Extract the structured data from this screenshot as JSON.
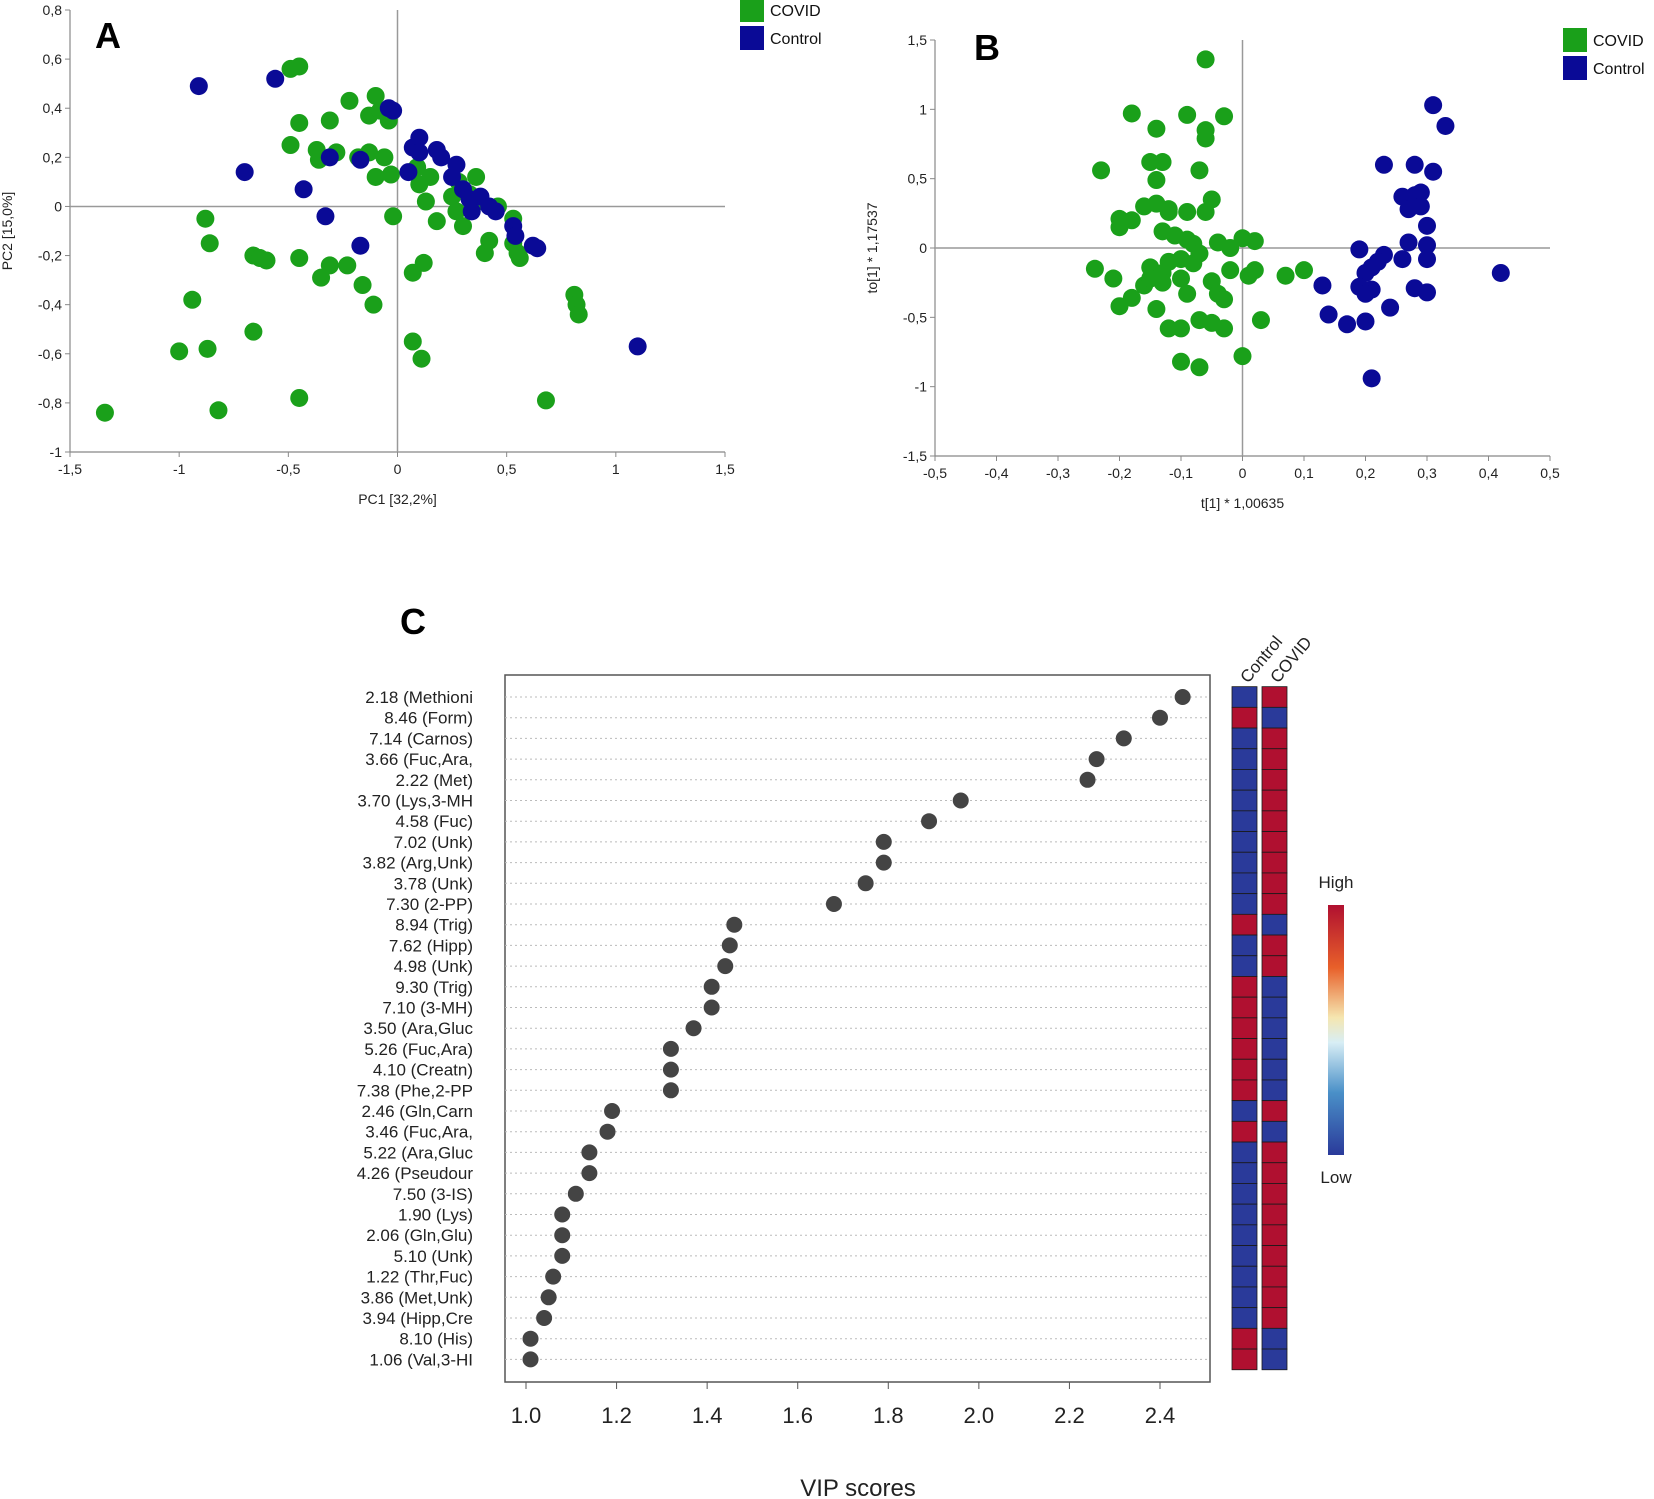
{
  "colors": {
    "covid": "#1aa01a",
    "control": "#0a0a96",
    "dot": "#444444",
    "heat_high": "#b01030",
    "heat_low": "#2a3a9a"
  },
  "chart_data": [
    {
      "type": "scatter",
      "panel_label": "A",
      "xlabel": "PC1 [32,2%]",
      "ylabel": "PC2 [15,0%]",
      "xlim": [
        -1.5,
        1.5
      ],
      "ylim": [
        -1,
        0.8
      ],
      "xticks": [
        "-1,5",
        "-1",
        "-0,5",
        "0",
        "0,5",
        "1",
        "1,5"
      ],
      "yticks": [
        "0,8",
        "0,6",
        "0,4",
        "0,2",
        "0",
        "-0,2",
        "-0,4",
        "-0,6",
        "-0,8",
        "-1"
      ],
      "legend": [
        {
          "name": "COVID",
          "color": "#1aa01a"
        },
        {
          "name": "Control",
          "color": "#0a0a96"
        }
      ],
      "series": [
        {
          "name": "COVID",
          "points": [
            [
              -1.34,
              -0.84
            ],
            [
              -1.0,
              -0.59
            ],
            [
              -0.87,
              -0.58
            ],
            [
              -0.94,
              -0.38
            ],
            [
              -0.88,
              -0.05
            ],
            [
              -0.86,
              -0.15
            ],
            [
              -0.82,
              -0.83
            ],
            [
              -0.66,
              -0.2
            ],
            [
              -0.63,
              -0.21
            ],
            [
              -0.6,
              -0.22
            ],
            [
              -0.66,
              -0.51
            ],
            [
              -0.49,
              0.56
            ],
            [
              -0.45,
              0.57
            ],
            [
              -0.45,
              0.34
            ],
            [
              -0.49,
              0.25
            ],
            [
              -0.45,
              -0.21
            ],
            [
              -0.45,
              -0.78
            ],
            [
              -0.37,
              0.23
            ],
            [
              -0.36,
              0.19
            ],
            [
              -0.35,
              -0.29
            ],
            [
              -0.31,
              0.35
            ],
            [
              -0.31,
              -0.24
            ],
            [
              -0.28,
              0.22
            ],
            [
              -0.23,
              -0.24
            ],
            [
              -0.22,
              0.43
            ],
            [
              -0.18,
              0.2
            ],
            [
              -0.16,
              -0.32
            ],
            [
              -0.13,
              0.37
            ],
            [
              -0.13,
              0.22
            ],
            [
              -0.11,
              -0.4
            ],
            [
              -0.1,
              0.45
            ],
            [
              -0.1,
              0.12
            ],
            [
              -0.08,
              0.39
            ],
            [
              -0.06,
              0.2
            ],
            [
              -0.04,
              0.35
            ],
            [
              -0.03,
              0.13
            ],
            [
              -0.02,
              -0.04
            ],
            [
              0.07,
              -0.27
            ],
            [
              0.07,
              -0.55
            ],
            [
              0.09,
              0.16
            ],
            [
              0.1,
              0.09
            ],
            [
              0.11,
              -0.62
            ],
            [
              0.12,
              -0.23
            ],
            [
              0.13,
              0.02
            ],
            [
              0.15,
              0.12
            ],
            [
              0.18,
              -0.06
            ],
            [
              0.25,
              0.04
            ],
            [
              0.27,
              -0.02
            ],
            [
              0.28,
              0.1
            ],
            [
              0.3,
              -0.08
            ],
            [
              0.33,
              0.05
            ],
            [
              0.36,
              0.12
            ],
            [
              0.37,
              0.02
            ],
            [
              0.4,
              -0.19
            ],
            [
              0.42,
              -0.14
            ],
            [
              0.46,
              0.0
            ],
            [
              0.53,
              -0.05
            ],
            [
              0.53,
              -0.15
            ],
            [
              0.55,
              -0.19
            ],
            [
              0.56,
              -0.21
            ],
            [
              0.68,
              -0.79
            ],
            [
              0.81,
              -0.36
            ],
            [
              0.82,
              -0.4
            ],
            [
              0.83,
              -0.44
            ]
          ]
        },
        {
          "name": "Control",
          "points": [
            [
              -0.91,
              0.49
            ],
            [
              -0.7,
              0.14
            ],
            [
              -0.56,
              0.52
            ],
            [
              -0.43,
              0.07
            ],
            [
              -0.33,
              -0.04
            ],
            [
              -0.31,
              0.2
            ],
            [
              -0.17,
              -0.16
            ],
            [
              -0.17,
              0.19
            ],
            [
              -0.04,
              0.4
            ],
            [
              -0.02,
              0.39
            ],
            [
              0.05,
              0.14
            ],
            [
              0.07,
              0.24
            ],
            [
              0.1,
              0.28
            ],
            [
              0.1,
              0.22
            ],
            [
              0.18,
              0.23
            ],
            [
              0.2,
              0.2
            ],
            [
              0.25,
              0.12
            ],
            [
              0.27,
              0.17
            ],
            [
              0.3,
              0.07
            ],
            [
              0.33,
              0.03
            ],
            [
              0.34,
              -0.02
            ],
            [
              0.38,
              0.04
            ],
            [
              0.42,
              0.0
            ],
            [
              0.45,
              -0.02
            ],
            [
              0.53,
              -0.08
            ],
            [
              0.54,
              -0.12
            ],
            [
              0.62,
              -0.16
            ],
            [
              0.64,
              -0.17
            ],
            [
              1.1,
              -0.57
            ]
          ]
        }
      ]
    },
    {
      "type": "scatter",
      "panel_label": "B",
      "xlabel": "t[1] * 1,00635",
      "ylabel": "to[1] * 1,17537",
      "xlim": [
        -0.5,
        0.5
      ],
      "ylim": [
        -1.5,
        1.5
      ],
      "xticks": [
        "-0,5",
        "-0,4",
        "-0,3",
        "-0,2",
        "-0,1",
        "0",
        "0,1",
        "0,2",
        "0,3",
        "0,4",
        "0,5"
      ],
      "yticks": [
        "1,5",
        "1",
        "0,5",
        "0",
        "-0,5",
        "-1",
        "-1,5"
      ],
      "legend": [
        {
          "name": "COVID",
          "color": "#1aa01a"
        },
        {
          "name": "Control",
          "color": "#0a0a96"
        }
      ],
      "series": [
        {
          "name": "COVID",
          "points": [
            [
              -0.06,
              1.36
            ],
            [
              -0.18,
              0.97
            ],
            [
              -0.09,
              0.96
            ],
            [
              -0.03,
              0.95
            ],
            [
              -0.14,
              0.86
            ],
            [
              -0.06,
              0.85
            ],
            [
              -0.06,
              0.79
            ],
            [
              -0.23,
              0.56
            ],
            [
              -0.15,
              0.62
            ],
            [
              -0.13,
              0.62
            ],
            [
              -0.14,
              0.49
            ],
            [
              -0.07,
              0.56
            ],
            [
              -0.16,
              0.3
            ],
            [
              -0.12,
              0.28
            ],
            [
              -0.09,
              0.26
            ],
            [
              -0.05,
              0.35
            ],
            [
              -0.2,
              0.21
            ],
            [
              -0.2,
              0.15
            ],
            [
              -0.18,
              0.2
            ],
            [
              -0.14,
              0.32
            ],
            [
              -0.12,
              0.26
            ],
            [
              -0.13,
              0.12
            ],
            [
              -0.11,
              0.09
            ],
            [
              -0.09,
              0.06
            ],
            [
              -0.08,
              0.03
            ],
            [
              -0.06,
              0.26
            ],
            [
              -0.04,
              0.04
            ],
            [
              -0.02,
              0.0
            ],
            [
              0.0,
              0.07
            ],
            [
              0.02,
              0.05
            ],
            [
              -0.24,
              -0.15
            ],
            [
              -0.21,
              -0.22
            ],
            [
              -0.2,
              -0.42
            ],
            [
              -0.18,
              -0.36
            ],
            [
              -0.16,
              -0.27
            ],
            [
              -0.15,
              -0.14
            ],
            [
              -0.15,
              -0.22
            ],
            [
              -0.13,
              -0.18
            ],
            [
              -0.13,
              -0.25
            ],
            [
              -0.12,
              -0.1
            ],
            [
              -0.1,
              -0.08
            ],
            [
              -0.1,
              -0.22
            ],
            [
              -0.09,
              -0.33
            ],
            [
              -0.08,
              -0.11
            ],
            [
              -0.07,
              -0.04
            ],
            [
              -0.05,
              -0.24
            ],
            [
              -0.04,
              -0.33
            ],
            [
              -0.03,
              -0.37
            ],
            [
              -0.02,
              -0.16
            ],
            [
              0.01,
              -0.2
            ],
            [
              0.02,
              -0.16
            ],
            [
              -0.14,
              -0.44
            ],
            [
              -0.12,
              -0.58
            ],
            [
              -0.1,
              -0.58
            ],
            [
              -0.07,
              -0.52
            ],
            [
              -0.05,
              -0.54
            ],
            [
              -0.03,
              -0.58
            ],
            [
              -0.1,
              -0.82
            ],
            [
              -0.07,
              -0.86
            ],
            [
              0.0,
              -0.78
            ],
            [
              0.03,
              -0.52
            ],
            [
              0.07,
              -0.2
            ],
            [
              0.1,
              -0.16
            ]
          ]
        },
        {
          "name": "Control",
          "points": [
            [
              0.31,
              1.03
            ],
            [
              0.33,
              0.88
            ],
            [
              0.23,
              0.6
            ],
            [
              0.28,
              0.6
            ],
            [
              0.31,
              0.55
            ],
            [
              0.26,
              0.37
            ],
            [
              0.28,
              0.38
            ],
            [
              0.29,
              0.4
            ],
            [
              0.27,
              0.28
            ],
            [
              0.29,
              0.3
            ],
            [
              0.3,
              0.16
            ],
            [
              0.27,
              0.04
            ],
            [
              0.3,
              0.02
            ],
            [
              0.19,
              -0.01
            ],
            [
              0.23,
              -0.05
            ],
            [
              0.22,
              -0.1
            ],
            [
              0.21,
              -0.14
            ],
            [
              0.2,
              -0.18
            ],
            [
              0.26,
              -0.08
            ],
            [
              0.3,
              -0.08
            ],
            [
              0.13,
              -0.27
            ],
            [
              0.19,
              -0.28
            ],
            [
              0.21,
              -0.3
            ],
            [
              0.2,
              -0.33
            ],
            [
              0.28,
              -0.29
            ],
            [
              0.3,
              -0.32
            ],
            [
              0.14,
              -0.48
            ],
            [
              0.17,
              -0.55
            ],
            [
              0.2,
              -0.53
            ],
            [
              0.24,
              -0.43
            ],
            [
              0.42,
              -0.18
            ],
            [
              0.21,
              -0.94
            ]
          ]
        }
      ]
    },
    {
      "type": "scatter",
      "panel_label": "C",
      "xlabel": "VIP scores",
      "xlim": [
        1.0,
        2.4
      ],
      "xticks": [
        "1.0",
        "1.2",
        "1.4",
        "1.6",
        "1.8",
        "2.0",
        "2.2",
        "2.4"
      ],
      "heatmap_columns": [
        "Control",
        "COVID"
      ],
      "heatmap_legend": {
        "high": "High",
        "low": "Low"
      },
      "features": [
        {
          "label": "2.18 (Methioni",
          "vip": 2.45,
          "control": "low",
          "covid": "high"
        },
        {
          "label": "8.46 (Form)",
          "vip": 2.4,
          "control": "high",
          "covid": "low"
        },
        {
          "label": "7.14 (Carnos)",
          "vip": 2.32,
          "control": "low",
          "covid": "high"
        },
        {
          "label": "3.66 (Fuc,Ara,",
          "vip": 2.26,
          "control": "low",
          "covid": "high"
        },
        {
          "label": "2.22 (Met)",
          "vip": 2.24,
          "control": "low",
          "covid": "high"
        },
        {
          "label": "3.70 (Lys,3-MH",
          "vip": 1.96,
          "control": "low",
          "covid": "high"
        },
        {
          "label": "4.58 (Fuc)",
          "vip": 1.89,
          "control": "low",
          "covid": "high"
        },
        {
          "label": "7.02 (Unk)",
          "vip": 1.79,
          "control": "low",
          "covid": "high"
        },
        {
          "label": "3.82 (Arg,Unk)",
          "vip": 1.79,
          "control": "low",
          "covid": "high"
        },
        {
          "label": "3.78 (Unk)",
          "vip": 1.75,
          "control": "low",
          "covid": "high"
        },
        {
          "label": "7.30 (2-PP)",
          "vip": 1.68,
          "control": "low",
          "covid": "high"
        },
        {
          "label": "8.94 (Trig)",
          "vip": 1.46,
          "control": "high",
          "covid": "low"
        },
        {
          "label": "7.62 (Hipp)",
          "vip": 1.45,
          "control": "low",
          "covid": "high"
        },
        {
          "label": "4.98 (Unk)",
          "vip": 1.44,
          "control": "low",
          "covid": "high"
        },
        {
          "label": "9.30 (Trig)",
          "vip": 1.41,
          "control": "high",
          "covid": "low"
        },
        {
          "label": "7.10 (3-MH)",
          "vip": 1.41,
          "control": "high",
          "covid": "low"
        },
        {
          "label": "3.50 (Ara,Gluc",
          "vip": 1.37,
          "control": "high",
          "covid": "low"
        },
        {
          "label": "5.26 (Fuc,Ara)",
          "vip": 1.32,
          "control": "high",
          "covid": "low"
        },
        {
          "label": "4.10 (Creatn)",
          "vip": 1.32,
          "control": "high",
          "covid": "low"
        },
        {
          "label": "7.38 (Phe,2-PP",
          "vip": 1.32,
          "control": "high",
          "covid": "low"
        },
        {
          "label": "2.46 (Gln,Carn",
          "vip": 1.19,
          "control": "low",
          "covid": "high"
        },
        {
          "label": "3.46 (Fuc,Ara,",
          "vip": 1.18,
          "control": "high",
          "covid": "low"
        },
        {
          "label": "5.22 (Ara,Gluc",
          "vip": 1.14,
          "control": "low",
          "covid": "high"
        },
        {
          "label": "4.26 (Pseudour",
          "vip": 1.14,
          "control": "low",
          "covid": "high"
        },
        {
          "label": "7.50 (3-IS)",
          "vip": 1.11,
          "control": "low",
          "covid": "high"
        },
        {
          "label": "1.90 (Lys)",
          "vip": 1.08,
          "control": "low",
          "covid": "high"
        },
        {
          "label": "2.06 (Gln,Glu)",
          "vip": 1.08,
          "control": "low",
          "covid": "high"
        },
        {
          "label": "5.10 (Unk)",
          "vip": 1.08,
          "control": "low",
          "covid": "high"
        },
        {
          "label": "1.22 (Thr,Fuc)",
          "vip": 1.06,
          "control": "low",
          "covid": "high"
        },
        {
          "label": "3.86 (Met,Unk)",
          "vip": 1.05,
          "control": "low",
          "covid": "high"
        },
        {
          "label": "3.94 (Hipp,Cre",
          "vip": 1.04,
          "control": "low",
          "covid": "high"
        },
        {
          "label": "8.10 (His)",
          "vip": 1.01,
          "control": "high",
          "covid": "low"
        },
        {
          "label": "1.06 (Val,3-HI",
          "vip": 1.01,
          "control": "high",
          "covid": "low"
        }
      ]
    }
  ]
}
